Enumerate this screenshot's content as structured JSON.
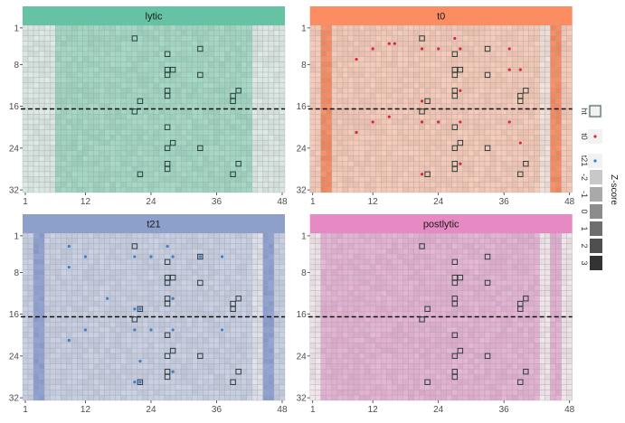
{
  "chart_data": {
    "type": "heatmap",
    "facets": [
      {
        "label": "lytic",
        "strip_color": "#66c2a5",
        "cell_color": "#9ed3c0",
        "inactive_color": "#d7e3de",
        "control_color": "#9ed3c0",
        "inactive_columns": [
          1,
          2,
          3,
          4,
          5,
          6,
          43,
          44,
          45,
          46,
          47,
          48
        ],
        "control_columns": [],
        "dots": []
      },
      {
        "label": "t0",
        "strip_color": "#fc8d62",
        "cell_color": "#f1c5b4",
        "inactive_color": "#eddcd6",
        "control_color": "#f38a61",
        "inactive_columns": [
          43,
          44
        ],
        "control_columns": [
          3,
          4,
          45,
          46
        ],
        "dots": "t0"
      },
      {
        "label": "t21",
        "strip_color": "#8da0cb",
        "cell_color": "#c4cbdf",
        "inactive_color": "#dadde7",
        "control_color": "#8d9fd0",
        "inactive_columns": [
          43,
          44
        ],
        "control_columns": [
          3,
          4,
          45,
          46
        ],
        "dots": "t21"
      },
      {
        "label": "postlytic",
        "strip_color": "#e78ac3",
        "cell_color": "#e0afcf",
        "inactive_color": "#ebe0e6",
        "control_color": "#e0afcf",
        "inactive_columns": [
          1,
          2,
          43,
          44,
          47,
          48
        ],
        "control_columns": [],
        "dots": []
      }
    ],
    "x_ticks": [
      1,
      12,
      24,
      36,
      48
    ],
    "y_ticks": [
      1,
      8,
      16,
      24,
      32
    ],
    "xlim": [
      1,
      48
    ],
    "ylim": [
      1,
      32
    ],
    "y_reversed": true,
    "hline_row": 16.5,
    "hits": [
      [
        21,
        3
      ],
      [
        33,
        5
      ],
      [
        27,
        6
      ],
      [
        27,
        9
      ],
      [
        28,
        9
      ],
      [
        27,
        10
      ],
      [
        33,
        10
      ],
      [
        27,
        13
      ],
      [
        27,
        14
      ],
      [
        40,
        13
      ],
      [
        39,
        14
      ],
      [
        39,
        15
      ],
      [
        22,
        15
      ],
      [
        21,
        17
      ],
      [
        27,
        20
      ],
      [
        28,
        23
      ],
      [
        27,
        24
      ],
      [
        33,
        24
      ],
      [
        27,
        27
      ],
      [
        27,
        28
      ],
      [
        40,
        27
      ],
      [
        22,
        29
      ],
      [
        39,
        29
      ]
    ],
    "t0_points": [
      [
        27,
        3
      ],
      [
        15,
        4
      ],
      [
        16,
        4
      ],
      [
        12,
        5
      ],
      [
        21,
        5
      ],
      [
        24,
        5
      ],
      [
        28,
        5
      ],
      [
        37,
        5
      ],
      [
        9,
        7
      ],
      [
        37,
        9
      ],
      [
        39,
        9
      ],
      [
        28,
        13
      ],
      [
        21,
        15
      ],
      [
        15,
        18
      ],
      [
        12,
        19
      ],
      [
        21,
        19
      ],
      [
        24,
        19
      ],
      [
        28,
        19
      ],
      [
        37,
        19
      ],
      [
        9,
        21
      ],
      [
        39,
        23
      ],
      [
        28,
        27
      ],
      [
        21,
        29
      ]
    ],
    "t21_points": [
      [
        9,
        3
      ],
      [
        27,
        3
      ],
      [
        12,
        5
      ],
      [
        21,
        5
      ],
      [
        24,
        5
      ],
      [
        28,
        5
      ],
      [
        33,
        5
      ],
      [
        37,
        5
      ],
      [
        9,
        7
      ],
      [
        16,
        13
      ],
      [
        28,
        13
      ],
      [
        21,
        15
      ],
      [
        22,
        15
      ],
      [
        12,
        19
      ],
      [
        21,
        19
      ],
      [
        24,
        19
      ],
      [
        28,
        19
      ],
      [
        37,
        19
      ],
      [
        9,
        21
      ],
      [
        22,
        25
      ],
      [
        28,
        27
      ],
      [
        21,
        29
      ],
      [
        22,
        29
      ]
    ],
    "legend": {
      "items": [
        {
          "label": "ht",
          "shape": "square-outline",
          "color": "#2f4f4f"
        },
        {
          "label": "t0",
          "shape": "dot",
          "color": "#d62839"
        },
        {
          "label": "t21",
          "shape": "dot",
          "color": "#3b7fd0"
        }
      ],
      "zscore_title": "Z-score",
      "zscore_levels": [
        {
          "label": "-2",
          "color": "#c8c8c8"
        },
        {
          "label": "-1",
          "color": "#a9a9a9"
        },
        {
          "label": "0",
          "color": "#8c8c8c"
        },
        {
          "label": "1",
          "color": "#6e6e6e"
        },
        {
          "label": "2",
          "color": "#4f4f4f"
        },
        {
          "label": "3",
          "color": "#333333"
        }
      ]
    }
  }
}
